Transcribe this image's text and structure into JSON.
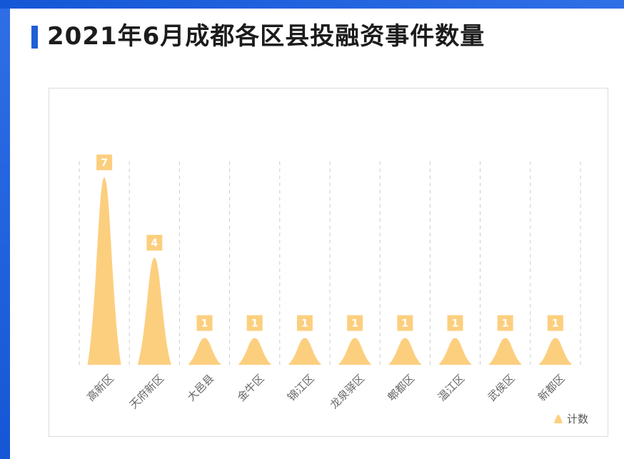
{
  "title": "2021年6月成都各区县投融资事件数量",
  "colors": {
    "frame": "#1f5fd8",
    "bar": "#fccf7f",
    "label_bg": "#fccf7f",
    "label_text": "#ffffff",
    "grid": "#cccccc",
    "tick": "#666666"
  },
  "chart_data": {
    "type": "bar",
    "bar_shape": "cone",
    "categories": [
      "高新区",
      "天府新区",
      "大邑县",
      "金牛区",
      "锦江区",
      "龙泉驿区",
      "郫都区",
      "温江区",
      "武侯区",
      "新都区"
    ],
    "series": [
      {
        "name": "计数",
        "values": [
          7,
          4,
          1,
          1,
          1,
          1,
          1,
          1,
          1,
          1
        ]
      }
    ],
    "ylim": [
      0,
      7.6
    ],
    "grid": "vertical dashed",
    "legend": "bottom-right",
    "data_labels": true
  }
}
